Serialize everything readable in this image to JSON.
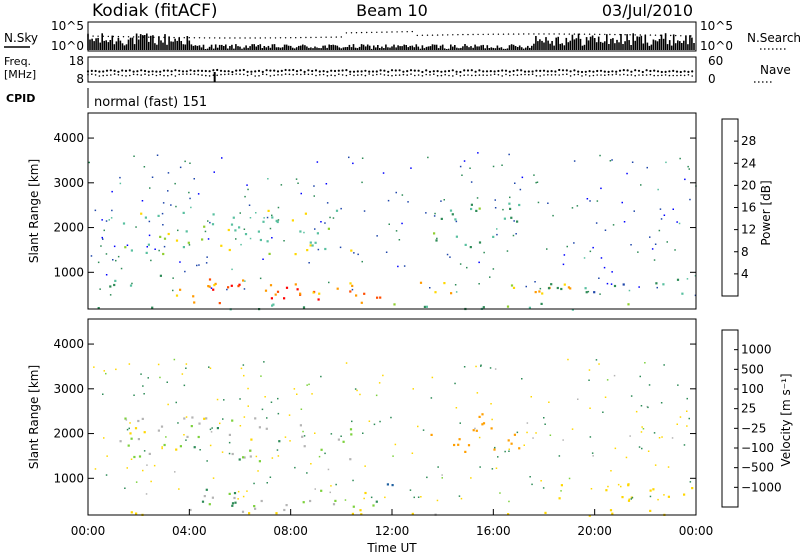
{
  "header": {
    "station": "Kodiak (fitACF)",
    "beam": "Beam 10",
    "date": "03/Jul/2010"
  },
  "status_panels": {
    "nsky_label": "N.Sky",
    "nsearch_label": "N.Search",
    "nsky_ticks": [
      "10^5",
      "10^0"
    ],
    "nsearch_ticks": [
      "10^5",
      "10^0"
    ],
    "freq_label_line1": "Freq.",
    "freq_label_line2": "[MHz]",
    "freq_ticks": [
      "18",
      "8"
    ],
    "nave_label": "Nave",
    "nave_ticks": [
      "60",
      "0"
    ],
    "cpid_label": "CPID",
    "cpid_text": "normal (fast) 151"
  },
  "colors": {
    "power_scale": [
      "#0000ff",
      "#1e46aa",
      "#2e8b57",
      "#59c0a0",
      "#8fce2f",
      "#ffd800",
      "#ff9a00",
      "#ff4c00",
      "#ff0000"
    ],
    "velocity_scale": [
      "#1030d0",
      "#2060a0",
      "#2e8b57",
      "#7cd13c",
      "#b4b4b4",
      "#b4b4b4",
      "#ffd700",
      "#ff9f00",
      "#ff6a00",
      "#ff0000"
    ]
  },
  "chart_data": [
    {
      "type": "heatmap",
      "name": "Power",
      "ylabel": "Slant Range [km]",
      "y_ticks": [
        1000,
        2000,
        3000,
        4000
      ],
      "ylim": [
        180,
        4560
      ],
      "x_ticks": [
        "00:00",
        "04:00",
        "08:00",
        "12:00",
        "16:00",
        "20:00",
        "00:00"
      ],
      "xlim": [
        0,
        24
      ],
      "colorbar": {
        "label": "Power [dB]",
        "ticks": [
          "4",
          "8",
          "12",
          "16",
          "20",
          "24",
          "28"
        ],
        "range": [
          0,
          30
        ]
      },
      "blobs": [
        {
          "t0": 4.6,
          "t1": 10.8,
          "r0": 400,
          "r1": 750,
          "level": 28
        },
        {
          "t0": 3.8,
          "t1": 11.6,
          "r0": 300,
          "r1": 850,
          "level": 22
        },
        {
          "t0": 0.2,
          "t1": 23.8,
          "r0": 180,
          "r1": 320,
          "level": 10
        },
        {
          "t0": 12.5,
          "t1": 19.0,
          "r0": 450,
          "r1": 800,
          "level": 20
        },
        {
          "t0": 1.2,
          "t1": 10.5,
          "r0": 1400,
          "r1": 2400,
          "level": 14
        },
        {
          "t0": 13.5,
          "t1": 17.0,
          "r0": 1500,
          "r1": 2600,
          "level": 10
        },
        {
          "t0": 0.1,
          "t1": 3.0,
          "r0": 700,
          "r1": 1000,
          "level": 6
        },
        {
          "t0": 18.0,
          "t1": 24.0,
          "r0": 500,
          "r1": 900,
          "level": 8
        },
        {
          "t0": 3.0,
          "t1": 5.0,
          "r0": 500,
          "r1": 900,
          "level": 24
        }
      ]
    },
    {
      "type": "heatmap",
      "name": "Velocity",
      "ylabel": "Slant Range [km]",
      "y_ticks": [
        1000,
        2000,
        3000,
        4000
      ],
      "ylim": [
        180,
        4560
      ],
      "x_ticks": [
        "00:00",
        "04:00",
        "08:00",
        "12:00",
        "16:00",
        "20:00",
        "00:00"
      ],
      "xlim": [
        0,
        24
      ],
      "xlabel": "Time UT",
      "colorbar": {
        "label": "Velocity [m s⁻¹]",
        "ticks": [
          "1000",
          "500",
          "100",
          "25",
          "−25",
          "−100",
          "−500",
          "−1000"
        ],
        "range": [
          -1000,
          1000
        ]
      },
      "blobs": [
        {
          "t0": 4.0,
          "t1": 11.5,
          "r0": 250,
          "r1": 800,
          "level": 0
        },
        {
          "t0": 1.2,
          "t1": 10.5,
          "r0": 1400,
          "r1": 2400,
          "level": 0
        },
        {
          "t0": 13.5,
          "t1": 17.0,
          "r0": 1600,
          "r1": 2500,
          "level": -300
        },
        {
          "t0": 0.2,
          "t1": 23.8,
          "r0": 180,
          "r1": 320,
          "level": -50
        },
        {
          "t0": 5.0,
          "t1": 7.0,
          "r0": 200,
          "r1": 500,
          "level": 60
        },
        {
          "t0": 11.5,
          "t1": 12.5,
          "r0": 700,
          "r1": 1100,
          "level": 150
        },
        {
          "t0": 18.0,
          "t1": 24.0,
          "r0": 500,
          "r1": 900,
          "level": -60
        }
      ]
    }
  ]
}
